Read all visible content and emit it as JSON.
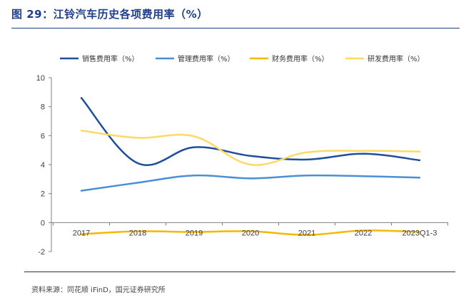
{
  "figure": {
    "title": "图 29：江铃汽车历史各项费用率（%）",
    "source": "资料来源：同花顺 iFinD，国元证券研究所"
  },
  "chart_data": {
    "type": "line",
    "categories": [
      "2017",
      "2018",
      "2019",
      "2020",
      "2021",
      "2022",
      "2023Q1-3"
    ],
    "ylim": [
      -2,
      10
    ],
    "yticks": [
      -2,
      0,
      2,
      4,
      6,
      8,
      10
    ],
    "grid": false,
    "legend_position": "top",
    "smooth": true,
    "series": [
      {
        "name": "销售费用率（%）",
        "color": "#1f4e9c",
        "values": [
          8.6,
          4.1,
          5.2,
          4.6,
          4.35,
          4.75,
          4.3
        ]
      },
      {
        "name": "管理费用率（%）",
        "color": "#4a8fd6",
        "values": [
          2.2,
          2.75,
          3.25,
          3.05,
          3.25,
          3.2,
          3.1
        ]
      },
      {
        "name": "财务费用率（%）",
        "color": "#f5b800",
        "values": [
          -0.8,
          -0.6,
          -0.65,
          -0.6,
          -0.85,
          -0.55,
          -0.65
        ]
      },
      {
        "name": "研发费用率（%）",
        "color": "#ffd966",
        "values": [
          6.35,
          5.85,
          5.95,
          4.0,
          4.85,
          4.95,
          4.9
        ]
      }
    ]
  }
}
